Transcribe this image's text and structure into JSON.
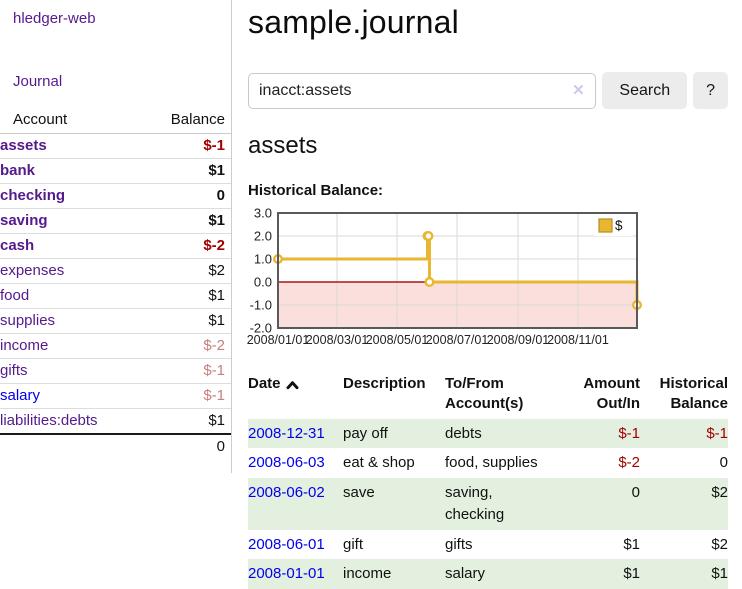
{
  "sidebar": {
    "app_title": "hledger-web",
    "nav": {
      "journal_label": "Journal"
    },
    "accounts_table": {
      "headers": {
        "account": "Account",
        "balance": "Balance"
      },
      "rows": [
        {
          "label": "assets",
          "level": 1,
          "bold": true,
          "link_color": "purple",
          "balance": "$-1",
          "balance_style": "neg-strong"
        },
        {
          "label": "bank",
          "level": 2,
          "bold": true,
          "link_color": "purple",
          "balance": "$1",
          "balance_style": "pos"
        },
        {
          "label": "checking",
          "level": 3,
          "bold": true,
          "link_color": "purple",
          "balance": "0",
          "balance_style": "pos"
        },
        {
          "label": "saving",
          "level": 3,
          "bold": true,
          "link_color": "purple",
          "balance": "$1",
          "balance_style": "pos"
        },
        {
          "label": "cash",
          "level": 2,
          "bold": true,
          "link_color": "purple",
          "balance": "$-2",
          "balance_style": "neg-strong"
        },
        {
          "label": "expenses",
          "level": 1,
          "bold": false,
          "link_color": "purple",
          "balance": "$2",
          "balance_style": "pos"
        },
        {
          "label": "food",
          "level": 2,
          "bold": false,
          "link_color": "purple",
          "balance": "$1",
          "balance_style": "pos"
        },
        {
          "label": "supplies",
          "level": 2,
          "bold": false,
          "link_color": "purple",
          "balance": "$1",
          "balance_style": "pos"
        },
        {
          "label": "income",
          "level": 1,
          "bold": false,
          "link_color": "purple",
          "balance": "$-2",
          "balance_style": "neg-faded"
        },
        {
          "label": "gifts",
          "level": 2,
          "bold": false,
          "link_color": "purple",
          "balance": "$-1",
          "balance_style": "neg-faded"
        },
        {
          "label": "salary",
          "level": 2,
          "bold": false,
          "link_color": "blue",
          "balance": "$-1",
          "balance_style": "neg-faded"
        },
        {
          "label": "liabilities:debts",
          "level": 1,
          "bold": false,
          "link_color": "purple",
          "balance": "$1",
          "balance_style": "pos"
        }
      ],
      "total": "0"
    }
  },
  "header": {
    "title": "sample.journal"
  },
  "search": {
    "value": "inacct:assets",
    "button_label": "Search",
    "help_label": "?",
    "clear_icon": "✕"
  },
  "main": {
    "account_heading": "assets",
    "chart_label": "Historical Balance:"
  },
  "chart_data": {
    "type": "line",
    "interpolation": "step-after",
    "title": "Historical Balance",
    "series": [
      {
        "name": "$",
        "color": "#e8b631",
        "points": [
          [
            "2008-01-01",
            1
          ],
          [
            "2008-06-01",
            2
          ],
          [
            "2008-06-02",
            2
          ],
          [
            "2008-06-03",
            0
          ],
          [
            "2008-12-31",
            -1
          ]
        ]
      }
    ],
    "x_range": [
      "2008-01-01",
      "2008-12-31"
    ],
    "x_ticks": [
      {
        "date": "2008-01-01",
        "label": "2008/01/01"
      },
      {
        "date": "2008-03-01",
        "label": "2008/03/01"
      },
      {
        "date": "2008-05-01",
        "label": "2008/05/01"
      },
      {
        "date": "2008-07-01",
        "label": "2008/07/01"
      },
      {
        "date": "2008-09-01",
        "label": "2008/09/01"
      },
      {
        "date": "2008-11-01",
        "label": "2008/11/01"
      }
    ],
    "y_ticks": [
      3.0,
      2.0,
      1.0,
      0.0,
      -1.0,
      -2.0
    ],
    "ylim": [
      -2,
      3
    ],
    "grid": true,
    "legend": {
      "position": "top-right",
      "label": "$"
    },
    "colors": {
      "negative_region": "#fbdfdd",
      "zero_line": "#ab1613",
      "grid_line": "#d9d9d9",
      "border": "#595959",
      "marker_fill": "#ffffff"
    }
  },
  "register_table": {
    "columns": [
      "Date",
      "Description",
      "To/From Account(s)",
      "Amount Out/In",
      "Historical Balance"
    ],
    "sort_icon": "chevron-up",
    "sorted_by": "Date",
    "rows": [
      {
        "date": "2008-12-31",
        "description": "pay off",
        "accounts": "debts",
        "amount": "$-1",
        "amount_negative": true,
        "balance": "$-1",
        "balance_negative": true
      },
      {
        "date": "2008-06-03",
        "description": "eat & shop",
        "accounts": "food, supplies",
        "amount": "$-2",
        "amount_negative": true,
        "balance": "0",
        "balance_negative": false
      },
      {
        "date": "2008-06-02",
        "description": "save",
        "accounts": "saving, checking",
        "amount": "0",
        "amount_negative": false,
        "balance": "$2",
        "balance_negative": false
      },
      {
        "date": "2008-06-01",
        "description": "gift",
        "accounts": "gifts",
        "amount": "$1",
        "amount_negative": false,
        "balance": "$2",
        "balance_negative": false
      },
      {
        "date": "2008-01-01",
        "description": "income",
        "accounts": "salary",
        "amount": "$1",
        "amount_negative": false,
        "balance": "$1",
        "balance_negative": false
      }
    ]
  },
  "colors": {
    "link_purple": "#551a8b",
    "link_blue": "#0000ee",
    "negative_strong": "#a40000",
    "negative_faded": "#c57f7f",
    "row_green": "#e3efdf",
    "button_bg": "#ececec"
  }
}
